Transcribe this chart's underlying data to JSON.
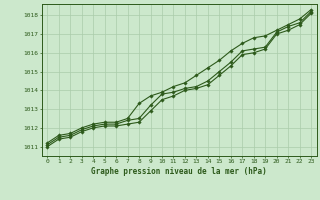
{
  "x": [
    0,
    1,
    2,
    3,
    4,
    5,
    6,
    7,
    8,
    9,
    10,
    11,
    12,
    13,
    14,
    15,
    16,
    17,
    18,
    19,
    20,
    21,
    22,
    23
  ],
  "y_main": [
    1011.1,
    1011.5,
    1011.6,
    1011.9,
    1012.1,
    1012.2,
    1012.2,
    1012.4,
    1012.5,
    1013.2,
    1013.8,
    1013.9,
    1014.1,
    1014.2,
    1014.5,
    1015.0,
    1015.5,
    1016.1,
    1016.2,
    1016.3,
    1017.1,
    1017.4,
    1017.6,
    1018.2
  ],
  "y_upper": [
    1011.2,
    1011.6,
    1011.7,
    1012.0,
    1012.2,
    1012.3,
    1012.3,
    1012.5,
    1013.3,
    1013.7,
    1013.9,
    1014.2,
    1014.4,
    1014.8,
    1015.2,
    1015.6,
    1016.1,
    1016.5,
    1016.8,
    1016.9,
    1017.2,
    1017.5,
    1017.8,
    1018.3
  ],
  "y_lower": [
    1011.0,
    1011.4,
    1011.5,
    1011.8,
    1012.0,
    1012.1,
    1012.1,
    1012.2,
    1012.3,
    1012.9,
    1013.5,
    1013.7,
    1014.0,
    1014.1,
    1014.3,
    1014.8,
    1015.3,
    1015.9,
    1016.0,
    1016.2,
    1017.0,
    1017.2,
    1017.5,
    1018.1
  ],
  "line_color": "#2d5a1b",
  "bg_color": "#cce8cc",
  "grid_color": "#aaccaa",
  "xlabel": "Graphe pression niveau de la mer (hPa)",
  "xlim": [
    -0.5,
    23.5
  ],
  "ylim": [
    1010.5,
    1018.6
  ],
  "yticks": [
    1011,
    1012,
    1013,
    1014,
    1015,
    1016,
    1017,
    1018
  ],
  "xticks": [
    0,
    1,
    2,
    3,
    4,
    5,
    6,
    7,
    8,
    9,
    10,
    11,
    12,
    13,
    14,
    15,
    16,
    17,
    18,
    19,
    20,
    21,
    22,
    23
  ],
  "marker": "D",
  "markersize": 1.8,
  "linewidth": 0.8
}
